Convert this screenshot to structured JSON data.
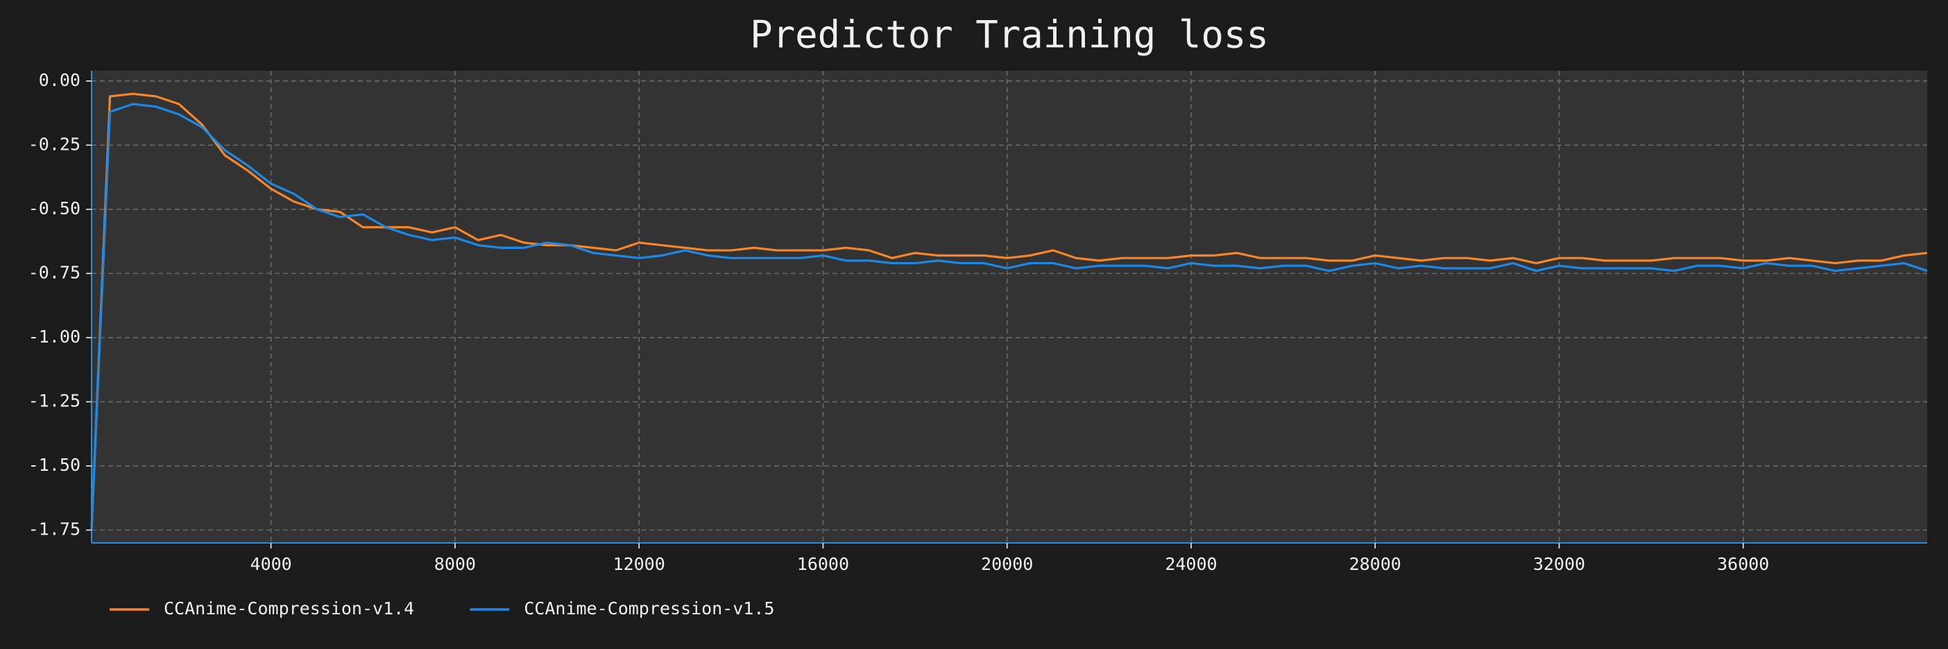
{
  "chart_data": {
    "type": "line",
    "title": "Predictor Training loss",
    "x": [
      100,
      500,
      1000,
      1500,
      2000,
      2500,
      3000,
      3500,
      4000,
      4500,
      5000,
      5500,
      6000,
      6500,
      7000,
      7500,
      8000,
      8500,
      9000,
      9500,
      10000,
      10500,
      11000,
      11500,
      12000,
      12500,
      13000,
      13500,
      14000,
      14500,
      15000,
      15500,
      16000,
      16500,
      17000,
      17500,
      18000,
      18500,
      19000,
      19500,
      20000,
      20500,
      21000,
      21500,
      22000,
      22500,
      23000,
      23500,
      24000,
      24500,
      25000,
      25500,
      26000,
      26500,
      27000,
      27500,
      28000,
      28500,
      29000,
      29500,
      30000,
      30500,
      31000,
      31500,
      32000,
      32500,
      33000,
      33500,
      34000,
      34500,
      35000,
      35500,
      36000,
      36500,
      37000,
      37500,
      38000,
      38500,
      39000,
      39500,
      40000
    ],
    "series": [
      {
        "name": "CCAnime-Compression-v1.4",
        "color": "#f5862a",
        "values": [
          -1.75,
          -0.06,
          -0.05,
          -0.06,
          -0.09,
          -0.17,
          -0.29,
          -0.35,
          -0.42,
          -0.47,
          -0.5,
          -0.51,
          -0.57,
          -0.57,
          -0.57,
          -0.59,
          -0.57,
          -0.62,
          -0.6,
          -0.63,
          -0.64,
          -0.64,
          -0.65,
          -0.66,
          -0.63,
          -0.64,
          -0.65,
          -0.66,
          -0.66,
          -0.65,
          -0.66,
          -0.66,
          -0.66,
          -0.65,
          -0.66,
          -0.69,
          -0.67,
          -0.68,
          -0.68,
          -0.68,
          -0.69,
          -0.68,
          -0.66,
          -0.69,
          -0.7,
          -0.69,
          -0.69,
          -0.69,
          -0.68,
          -0.68,
          -0.67,
          -0.69,
          -0.69,
          -0.69,
          -0.7,
          -0.7,
          -0.68,
          -0.69,
          -0.7,
          -0.69,
          -0.69,
          -0.7,
          -0.69,
          -0.71,
          -0.69,
          -0.69,
          -0.7,
          -0.7,
          -0.7,
          -0.69,
          -0.69,
          -0.69,
          -0.7,
          -0.7,
          -0.69,
          -0.7,
          -0.71,
          -0.7,
          -0.7,
          -0.68,
          -0.67
        ]
      },
      {
        "name": "CCAnime-Compression-v1.5",
        "color": "#1e88e5",
        "values": [
          -1.75,
          -0.12,
          -0.09,
          -0.1,
          -0.13,
          -0.18,
          -0.27,
          -0.33,
          -0.4,
          -0.44,
          -0.5,
          -0.53,
          -0.52,
          -0.57,
          -0.6,
          -0.62,
          -0.61,
          -0.64,
          -0.65,
          -0.65,
          -0.63,
          -0.64,
          -0.67,
          -0.68,
          -0.69,
          -0.68,
          -0.66,
          -0.68,
          -0.69,
          -0.69,
          -0.69,
          -0.69,
          -0.68,
          -0.7,
          -0.7,
          -0.71,
          -0.71,
          -0.7,
          -0.71,
          -0.71,
          -0.73,
          -0.71,
          -0.71,
          -0.73,
          -0.72,
          -0.72,
          -0.72,
          -0.73,
          -0.71,
          -0.72,
          -0.72,
          -0.73,
          -0.72,
          -0.72,
          -0.74,
          -0.72,
          -0.71,
          -0.73,
          -0.72,
          -0.73,
          -0.73,
          -0.73,
          -0.71,
          -0.74,
          -0.72,
          -0.73,
          -0.73,
          -0.73,
          -0.73,
          -0.74,
          -0.72,
          -0.72,
          -0.73,
          -0.71,
          -0.72,
          -0.72,
          -0.74,
          -0.73,
          -0.72,
          -0.71,
          -0.74
        ]
      }
    ],
    "xlim": [
      100,
      40000
    ],
    "ylim": [
      -1.8,
      0.04
    ],
    "xticks": [
      4000,
      8000,
      12000,
      16000,
      20000,
      24000,
      28000,
      32000,
      36000
    ],
    "yticks": [
      {
        "value": 0,
        "label": "0.00"
      },
      -0.25,
      {
        "value": -0.5,
        "label": "-0.50"
      },
      -0.75,
      {
        "value": -1,
        "label": "-1.00"
      },
      -1.25,
      {
        "value": -1.5,
        "label": "-1.50"
      },
      -1.75
    ],
    "grid": true,
    "legend": "bottom-left"
  }
}
